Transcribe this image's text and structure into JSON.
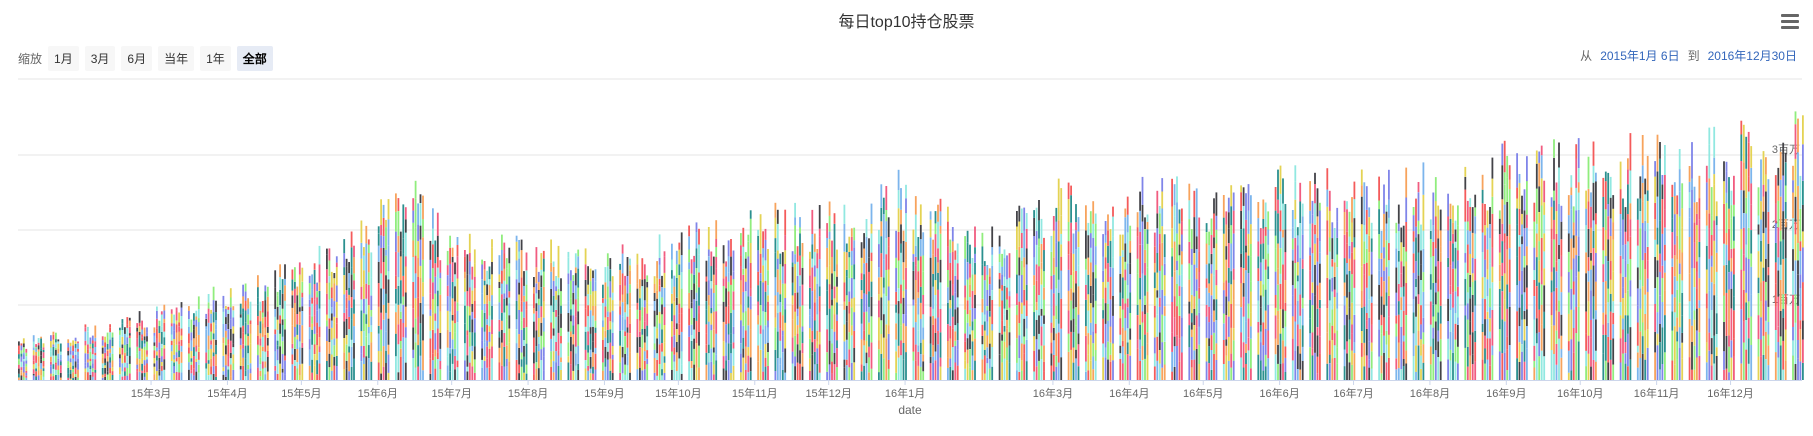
{
  "title": "每日top10持仓股票",
  "menu_icon": "hamburger-menu-icon",
  "zoom": {
    "label": "缩放",
    "buttons": [
      "1月",
      "3月",
      "6月",
      "当年",
      "1年",
      "全部"
    ],
    "active": "全部"
  },
  "range": {
    "from_word": "从",
    "from": "2015年1月 6日",
    "to_word": "到",
    "to": "2016年12月30日"
  },
  "chart_data": {
    "type": "bar",
    "stacked": true,
    "title": "每日top10持仓股票",
    "xlabel": "date",
    "ylabel": "",
    "x_range": [
      "2015-01-06",
      "2016-12-30"
    ],
    "ylim": [
      0,
      30000
    ],
    "y_ticks": [
      {
        "value": 10000,
        "label": "1百万"
      },
      {
        "value": 20000,
        "label": "2百万"
      },
      {
        "value": 30000,
        "label": "3百万"
      }
    ],
    "x_ticks": [
      {
        "date": "2015-03-01",
        "label": "15年3月"
      },
      {
        "date": "2015-04-01",
        "label": "15年4月"
      },
      {
        "date": "2015-05-01",
        "label": "15年5月"
      },
      {
        "date": "2015-06-01",
        "label": "15年6月"
      },
      {
        "date": "2015-07-01",
        "label": "15年7月"
      },
      {
        "date": "2015-08-01",
        "label": "15年8月"
      },
      {
        "date": "2015-09-01",
        "label": "15年9月"
      },
      {
        "date": "2015-10-01",
        "label": "15年10月"
      },
      {
        "date": "2015-11-01",
        "label": "15年11月"
      },
      {
        "date": "2015-12-01",
        "label": "15年12月"
      },
      {
        "date": "2016-01-01",
        "label": "16年1月"
      },
      {
        "date": "2016-03-01",
        "label": "16年3月"
      },
      {
        "date": "2016-04-01",
        "label": "16年4月"
      },
      {
        "date": "2016-05-01",
        "label": "16年5月"
      },
      {
        "date": "2016-06-01",
        "label": "16年6月"
      },
      {
        "date": "2016-07-01",
        "label": "16年7月"
      },
      {
        "date": "2016-08-01",
        "label": "16年8月"
      },
      {
        "date": "2016-09-01",
        "label": "16年9月"
      },
      {
        "date": "2016-10-01",
        "label": "16年10月"
      },
      {
        "date": "2016-11-01",
        "label": "16年11月"
      },
      {
        "date": "2016-12-01",
        "label": "16年12月"
      }
    ],
    "total_envelope": [
      {
        "date": "2015-01-06",
        "value": 5000
      },
      {
        "date": "2015-02-01",
        "value": 6500
      },
      {
        "date": "2015-03-01",
        "value": 8500
      },
      {
        "date": "2015-04-01",
        "value": 11500
      },
      {
        "date": "2015-05-01",
        "value": 15000
      },
      {
        "date": "2015-05-25",
        "value": 18500
      },
      {
        "date": "2015-06-12",
        "value": 25000
      },
      {
        "date": "2015-07-01",
        "value": 17000
      },
      {
        "date": "2015-08-01",
        "value": 17000
      },
      {
        "date": "2015-09-01",
        "value": 15500
      },
      {
        "date": "2015-10-01",
        "value": 17500
      },
      {
        "date": "2015-11-01",
        "value": 21000
      },
      {
        "date": "2015-12-01",
        "value": 21000
      },
      {
        "date": "2016-01-01",
        "value": 25000
      },
      {
        "date": "2016-02-01",
        "value": 17500
      },
      {
        "date": "2016-03-01",
        "value": 23500
      },
      {
        "date": "2016-04-01",
        "value": 23500
      },
      {
        "date": "2016-05-01",
        "value": 24000
      },
      {
        "date": "2016-06-01",
        "value": 25000
      },
      {
        "date": "2016-07-01",
        "value": 24500
      },
      {
        "date": "2016-08-01",
        "value": 25500
      },
      {
        "date": "2016-09-01",
        "value": 28000
      },
      {
        "date": "2016-10-01",
        "value": 29000
      },
      {
        "date": "2016-11-01",
        "value": 28500
      },
      {
        "date": "2016-12-01",
        "value": 30000
      },
      {
        "date": "2016-12-30",
        "value": 32000
      }
    ],
    "series_colors": [
      "#7cb5ec",
      "#434348",
      "#90ed7d",
      "#f7a35c",
      "#8085e9",
      "#f15c80",
      "#e4d354",
      "#2b908f",
      "#f45b5b",
      "#91e8e1"
    ]
  }
}
